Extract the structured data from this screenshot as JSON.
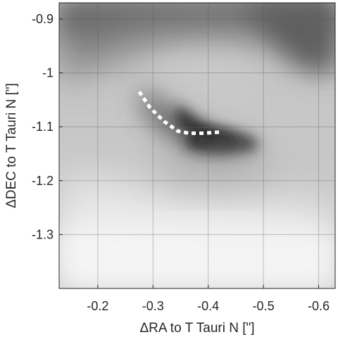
{
  "chart_data": {
    "type": "heatmap",
    "colormap": "grayscale (dark = high intensity)",
    "xlabel": "ΔRA to T Tauri N [\"]",
    "ylabel": "ΔDEC to T Tauri N [\"]",
    "xlim": [
      -0.13,
      -0.63
    ],
    "ylim": [
      -0.87,
      -1.4
    ],
    "x_direction": "reversed (values decrease to the right)",
    "x_ticks": [
      -0.2,
      -0.3,
      -0.4,
      -0.5,
      -0.6
    ],
    "x_tick_labels": [
      "-0.2",
      "-0.3",
      "-0.4",
      "-0.5",
      "-0.6"
    ],
    "y_ticks": [
      -0.9,
      -1.0,
      -1.1,
      -1.2,
      -1.3
    ],
    "y_tick_labels": [
      "-0.9",
      "-1",
      "-1.1",
      "-1.2",
      "-1.3"
    ],
    "grid": true,
    "features": [
      {
        "kind": "intensity peak",
        "x": -0.387,
        "y": -1.125
      },
      {
        "kind": "dark arc",
        "from": [
          -0.28,
          -1.04
        ],
        "to": [
          -0.46,
          -1.14
        ]
      }
    ],
    "overlay_series": {
      "style": "white dotted line",
      "x": [
        -0.275,
        -0.295,
        -0.32,
        -0.345,
        -0.365,
        -0.39,
        -0.42
      ],
      "y": [
        -1.035,
        -1.065,
        -1.09,
        -1.108,
        -1.112,
        -1.112,
        -1.11
      ]
    }
  }
}
